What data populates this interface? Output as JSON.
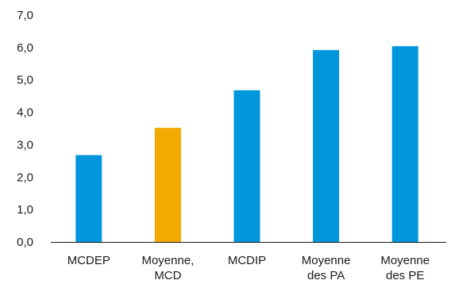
{
  "chart_data": {
    "type": "bar",
    "title": "",
    "xlabel": "",
    "ylabel": "",
    "ylim": [
      0,
      7
    ],
    "y_ticks": [
      "0,0",
      "1,0",
      "2,0",
      "3,0",
      "4,0",
      "5,0",
      "6,0",
      "7,0"
    ],
    "grid": false,
    "legend": "none",
    "categories": [
      [
        "MCDEP"
      ],
      [
        "Moyenne,",
        "MCD"
      ],
      [
        "MCDIP"
      ],
      [
        "Moyenne",
        "des PA"
      ],
      [
        "Moyenne",
        "des PE"
      ]
    ],
    "values": [
      2.68,
      3.52,
      4.68,
      5.92,
      6.04
    ],
    "bar_colors": [
      "#0096DB",
      "#F2A900",
      "#0096DB",
      "#0096DB",
      "#0096DB"
    ]
  }
}
